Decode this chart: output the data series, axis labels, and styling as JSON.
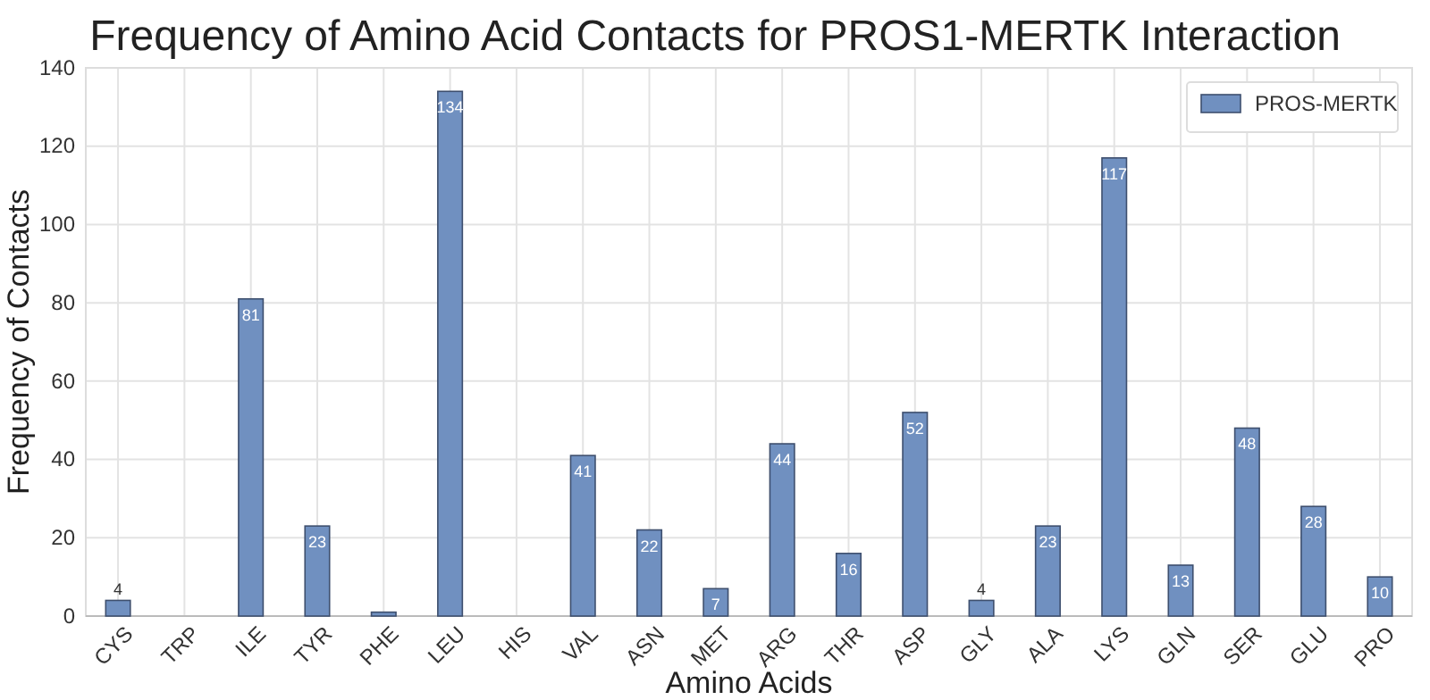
{
  "chart_data": {
    "type": "bar",
    "title": "Frequency of Amino Acid Contacts for PROS1-MERTK Interaction",
    "xlabel": "Amino Acids",
    "ylabel": "Frequency of Contacts",
    "categories": [
      "CYS",
      "TRP",
      "ILE",
      "TYR",
      "PHE",
      "LEU",
      "HIS",
      "VAL",
      "ASN",
      "MET",
      "ARG",
      "THR",
      "ASP",
      "GLY",
      "ALA",
      "LYS",
      "GLN",
      "SER",
      "GLU",
      "PRO"
    ],
    "series": [
      {
        "name": "PROS-MERTK",
        "color": "#7090c0",
        "values": [
          4,
          0,
          81,
          23,
          1,
          134,
          0,
          41,
          22,
          7,
          44,
          16,
          52,
          4,
          23,
          117,
          13,
          48,
          28,
          10
        ],
        "value_labels": [
          "4",
          null,
          "81",
          "23",
          null,
          "134",
          null,
          "41",
          "22",
          "7",
          "44",
          "16",
          "52",
          "4",
          "23",
          "117",
          "13",
          "48",
          "28",
          "10"
        ]
      }
    ],
    "ylim": [
      0,
      140
    ],
    "yticks": [
      0,
      20,
      40,
      60,
      80,
      100,
      120,
      140
    ],
    "grid": true,
    "legend": "top right"
  }
}
